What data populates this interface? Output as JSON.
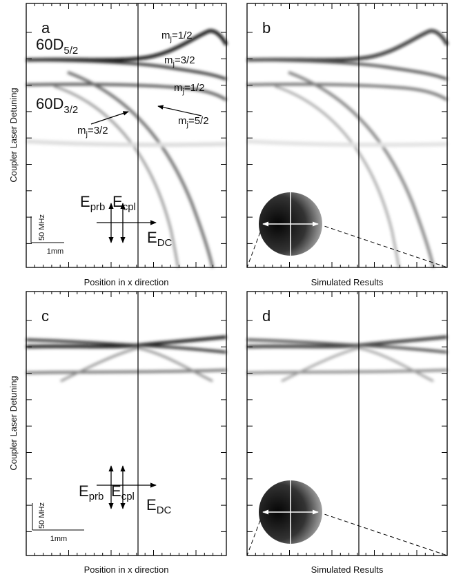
{
  "panels": [
    {
      "label": "a",
      "x_label": "Position in x direction",
      "y_label": "Coupler Laser Detuning",
      "scale_freq": "50 MHz",
      "scale_len": "1mm",
      "states": [
        {
          "base": "60D",
          "sub": "5/2"
        },
        {
          "base": "60D",
          "sub": "3/2"
        }
      ],
      "annotations": [
        {
          "base": "m",
          "sub": "j",
          "rest": "=1/2"
        },
        {
          "base": "m",
          "sub": "j",
          "rest": "=3/2"
        },
        {
          "base": "m",
          "sub": "j",
          "rest": "=1/2"
        },
        {
          "base": "m",
          "sub": "j",
          "rest": "=5/2"
        },
        {
          "base": "m",
          "sub": "j",
          "rest": "=3/2"
        }
      ],
      "fields": [
        {
          "base": "E",
          "sub": "prb"
        },
        {
          "base": "E",
          "sub": "cpl"
        },
        {
          "base": "E",
          "sub": "DC"
        }
      ]
    },
    {
      "label": "b",
      "x_label": "Simulated Results"
    },
    {
      "label": "c",
      "x_label": "Position in x direction",
      "y_label": "Coupler Laser Detuning",
      "scale_freq": "50 MHz",
      "scale_len": "1mm",
      "fields": [
        {
          "base": "E",
          "sub": "prb"
        },
        {
          "base": "E",
          "sub": "cpl"
        },
        {
          "base": "E",
          "sub": "DC"
        }
      ]
    },
    {
      "label": "d",
      "x_label": "Simulated Results"
    }
  ]
}
